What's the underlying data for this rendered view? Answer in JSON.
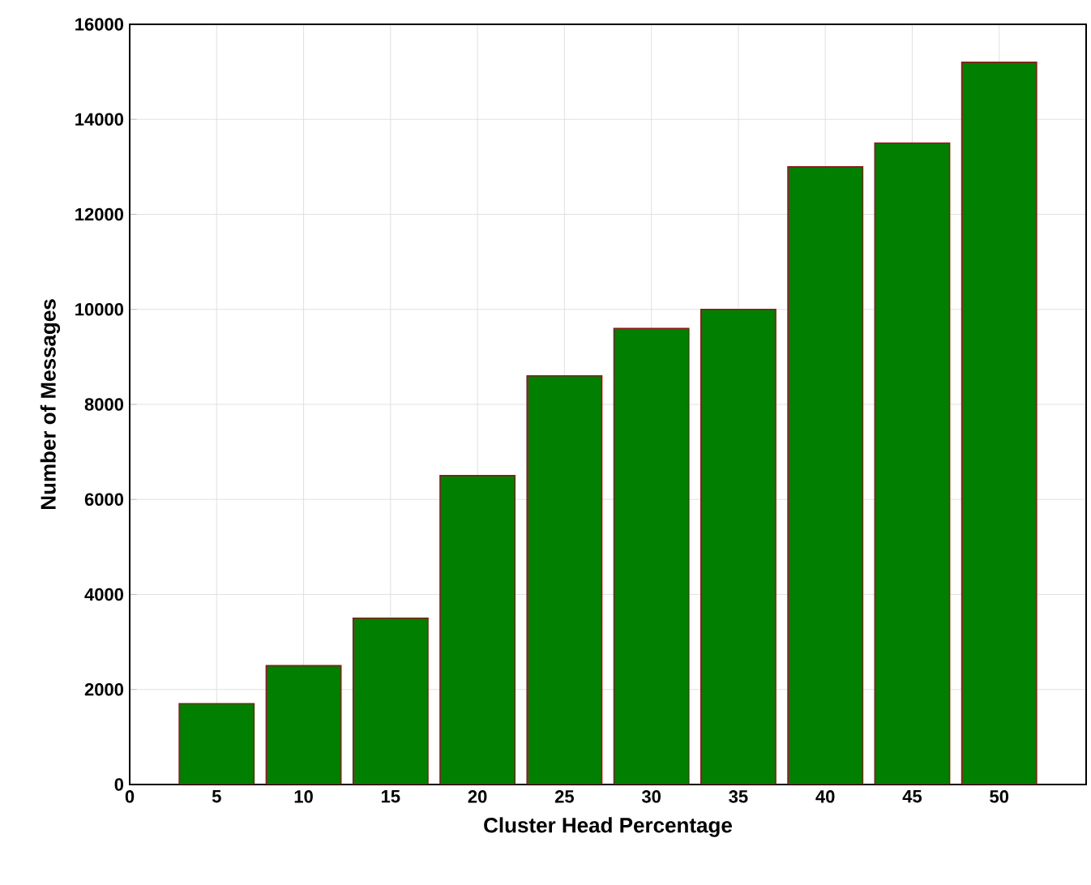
{
  "chart_data": {
    "type": "bar",
    "xlabel": "Cluster Head Percentage",
    "ylabel": "Number of Messages",
    "x": [
      5,
      10,
      15,
      20,
      25,
      30,
      35,
      40,
      45,
      50
    ],
    "values": [
      1700,
      2500,
      3500,
      6500,
      8600,
      9600,
      10000,
      13000,
      13500,
      15200
    ],
    "color": "#007f00",
    "xlim": [
      0,
      55
    ],
    "xticks": [
      0,
      5,
      10,
      15,
      20,
      25,
      30,
      35,
      40,
      45,
      50
    ],
    "ylim": [
      0,
      16000
    ],
    "yticks": [
      0,
      2000,
      4000,
      6000,
      8000,
      10000,
      12000,
      14000,
      16000
    ],
    "grid": true
  }
}
